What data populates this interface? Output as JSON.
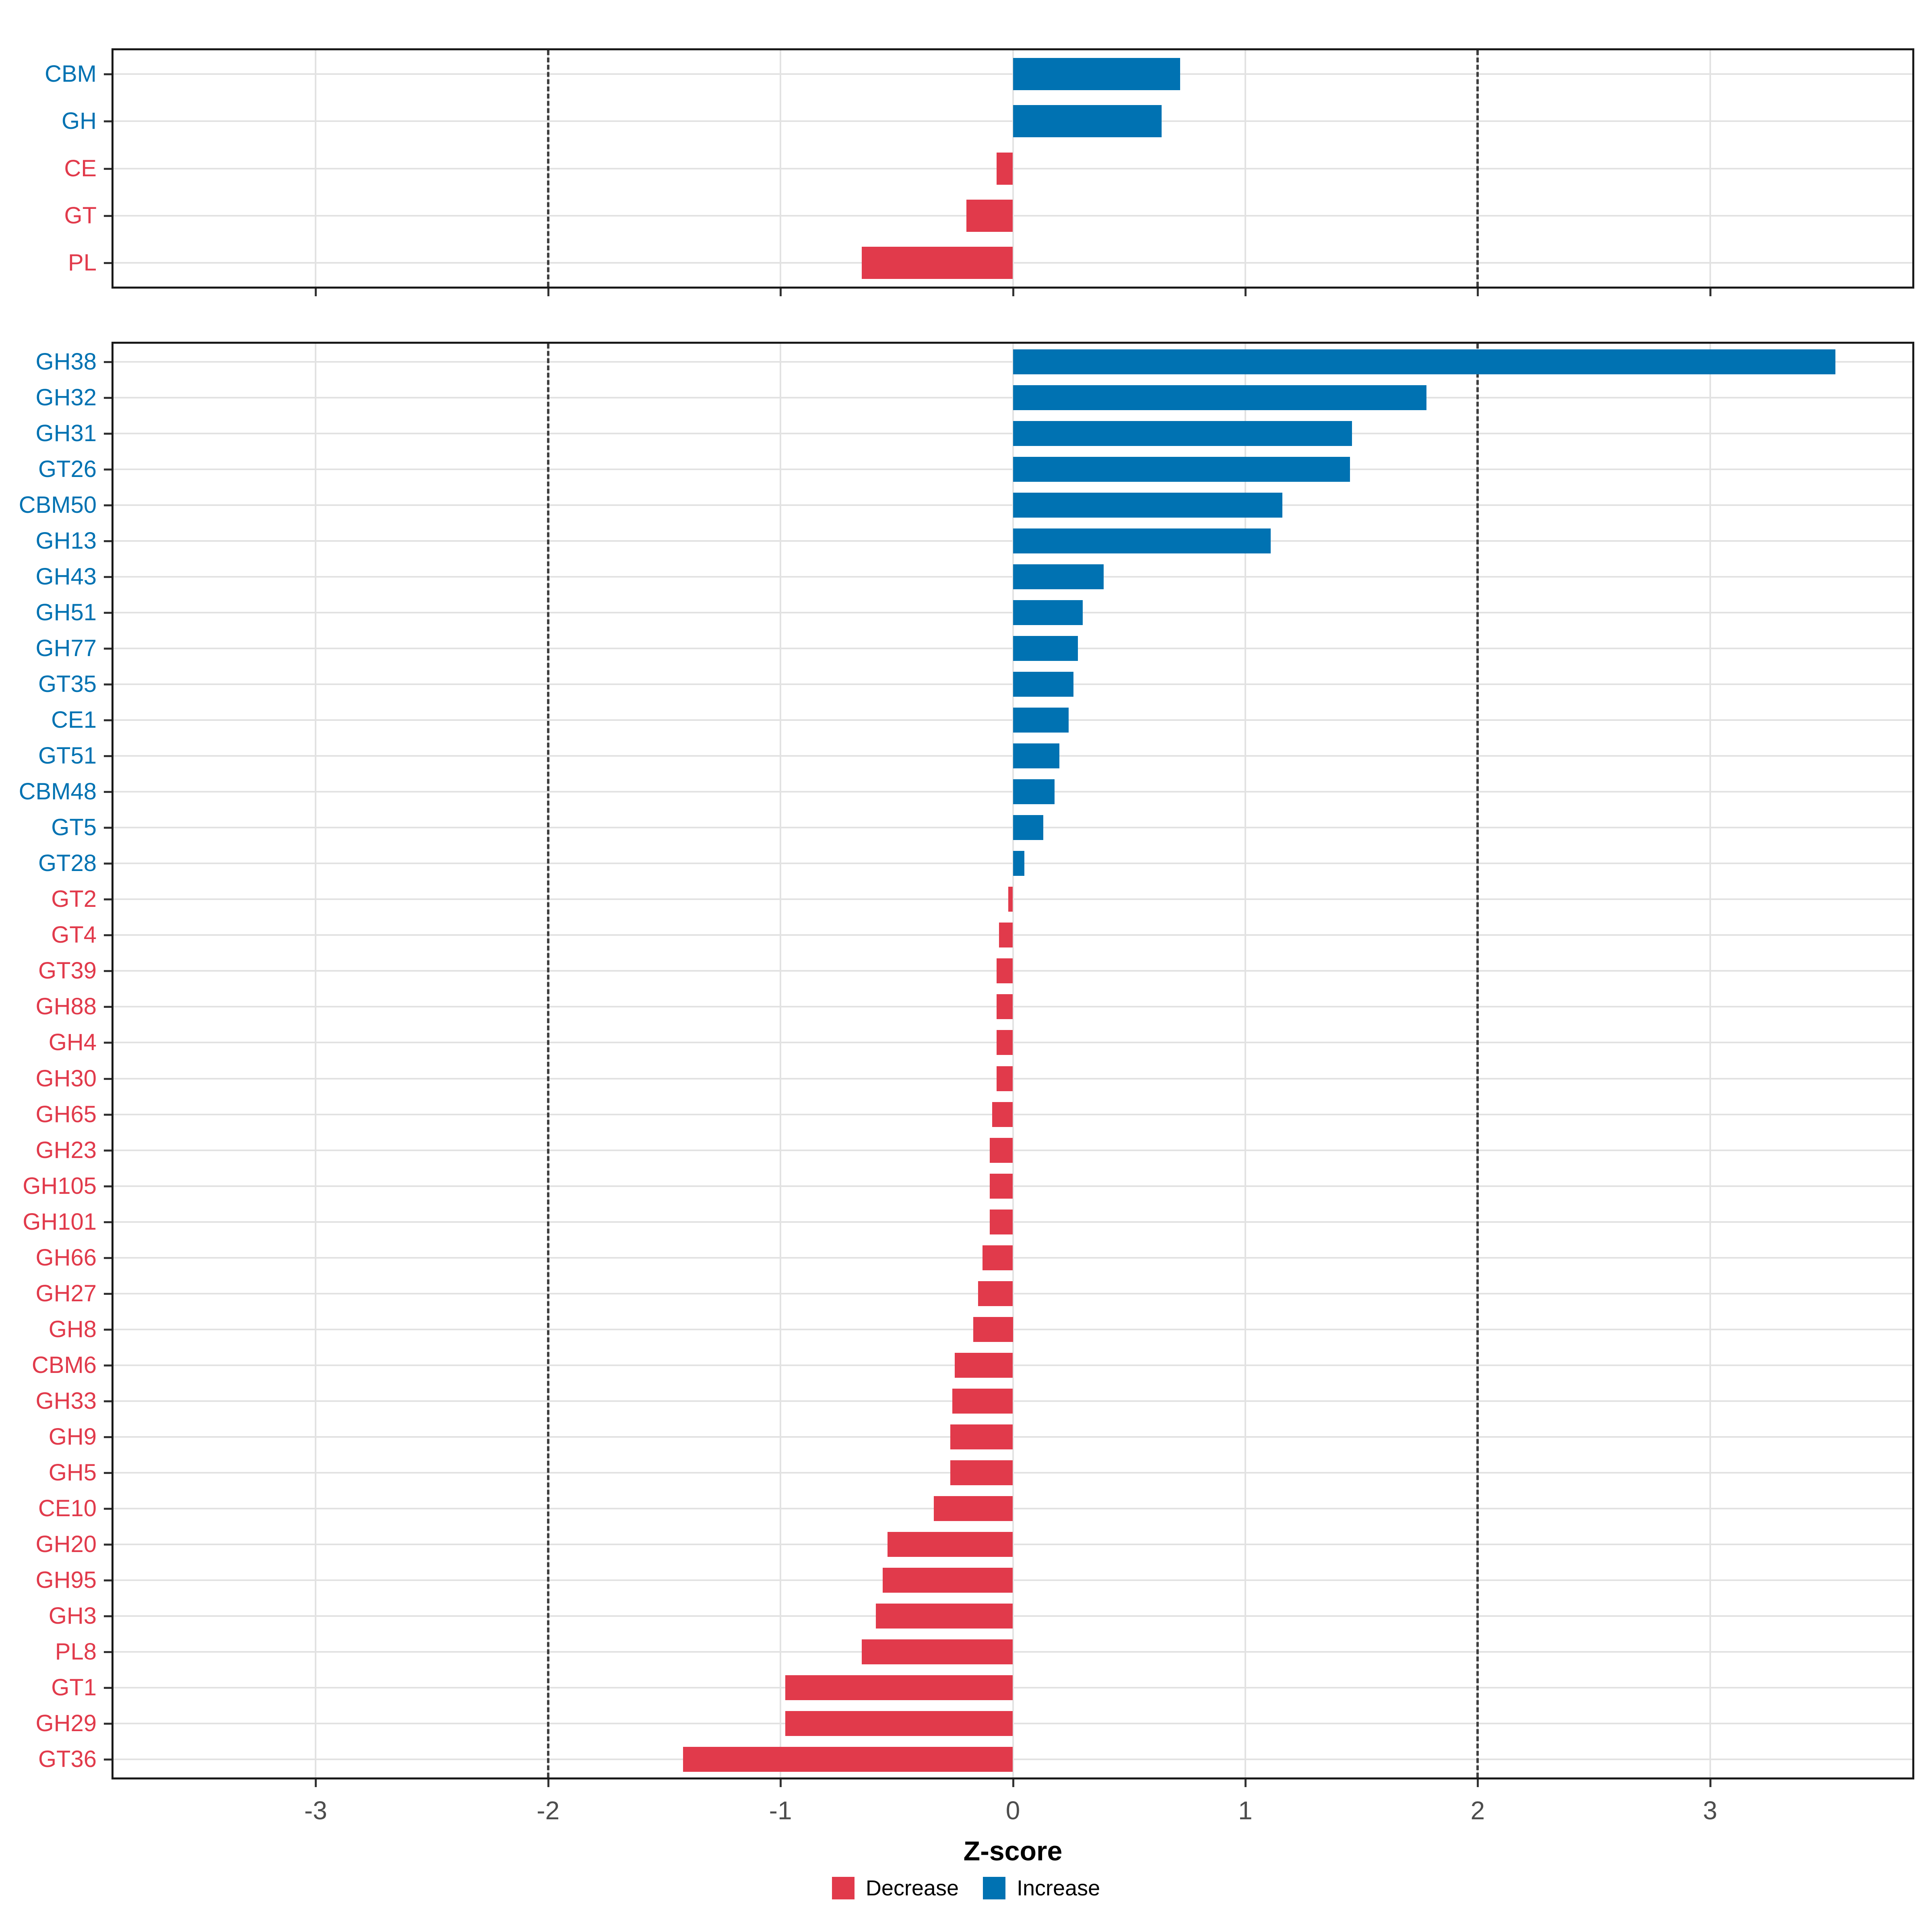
{
  "xlabel": "Z-score",
  "axis": {
    "range": [
      -3.87,
      3.87
    ],
    "ticks": [
      -3,
      -2,
      -1,
      0,
      1,
      2,
      3
    ],
    "dashed_lines": [
      -2,
      2
    ]
  },
  "colors": {
    "increase": "#0072B2",
    "decrease": "#E13A4B"
  },
  "legend": {
    "items": [
      {
        "label": "Decrease",
        "color": "#E13A4B"
      },
      {
        "label": "Increase",
        "color": "#0072B2"
      }
    ]
  },
  "chart_data": [
    {
      "type": "bar",
      "panel": "cazyme-classes",
      "orientation": "horizontal",
      "xlabel": "Z-score",
      "xlim": [
        -3.87,
        3.87
      ],
      "xticks": [
        -3,
        -2,
        -1,
        0,
        1,
        2,
        3
      ],
      "dashed_lines": [
        -2,
        2
      ],
      "grid": true,
      "categories": [
        "CBM",
        "GH",
        "CE",
        "GT",
        "PL"
      ],
      "values": [
        0.72,
        0.64,
        -0.07,
        -0.2,
        -0.65
      ]
    },
    {
      "type": "bar",
      "panel": "cazyme-families",
      "orientation": "horizontal",
      "xlabel": "Z-score",
      "xlim": [
        -3.87,
        3.87
      ],
      "xticks": [
        -3,
        -2,
        -1,
        0,
        1,
        2,
        3
      ],
      "dashed_lines": [
        -2,
        2
      ],
      "grid": true,
      "categories": [
        "GH38",
        "GH32",
        "GH31",
        "GT26",
        "CBM50",
        "GH13",
        "GH43",
        "GH51",
        "GH77",
        "GT35",
        "CE1",
        "GT51",
        "CBM48",
        "GT5",
        "GT28",
        "GT2",
        "GT4",
        "GT39",
        "GH88",
        "GH4",
        "GH30",
        "GH65",
        "GH23",
        "GH105",
        "GH101",
        "GH66",
        "GH27",
        "GH8",
        "CBM6",
        "GH33",
        "GH9",
        "GH5",
        "CE10",
        "GH20",
        "GH95",
        "GH3",
        "PL8",
        "GT1",
        "GH29",
        "GT36"
      ],
      "values": [
        3.54,
        1.78,
        1.46,
        1.45,
        1.16,
        1.11,
        0.39,
        0.3,
        0.28,
        0.26,
        0.24,
        0.2,
        0.18,
        0.13,
        0.05,
        -0.02,
        -0.06,
        -0.07,
        -0.07,
        -0.07,
        -0.07,
        -0.09,
        -0.1,
        -0.1,
        -0.1,
        -0.13,
        -0.15,
        -0.17,
        -0.25,
        -0.26,
        -0.27,
        -0.27,
        -0.34,
        -0.54,
        -0.56,
        -0.59,
        -0.65,
        -0.98,
        -0.98,
        -1.42
      ]
    }
  ]
}
